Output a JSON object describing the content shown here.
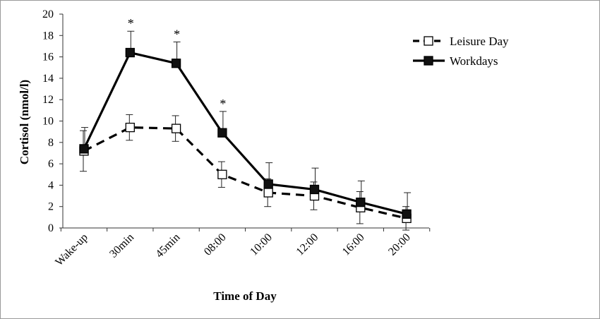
{
  "chart_data": {
    "type": "line",
    "title": "",
    "xlabel": "Time of Day",
    "ylabel": "Cortisol (nmol/l)",
    "ylim": [
      0,
      20
    ],
    "yticks": [
      "0",
      "2",
      "4",
      "6",
      "8",
      "10",
      "12",
      "14",
      "16",
      "18",
      "20"
    ],
    "categories": [
      "Wake-up",
      "30min",
      "45min",
      "08:00",
      "10:00",
      "12:00",
      "16:00",
      "20:00"
    ],
    "series": [
      {
        "name": "Leisure Day",
        "style": "dashed",
        "marker": "open-square",
        "values": [
          7.2,
          9.4,
          9.3,
          5.0,
          3.3,
          3.0,
          1.9,
          0.9
        ],
        "errors": [
          1.9,
          1.2,
          1.2,
          1.2,
          1.3,
          1.3,
          1.5,
          1.1
        ]
      },
      {
        "name": "Workdays",
        "style": "solid",
        "marker": "filled-square",
        "values": [
          7.4,
          16.4,
          15.4,
          8.9,
          4.1,
          3.6,
          2.4,
          1.3
        ],
        "errors": [
          2.0,
          2.0,
          2.0,
          2.0,
          2.0,
          2.0,
          2.0,
          2.0
        ]
      }
    ],
    "significance_marker": "*",
    "significant_categories": [
      "30min",
      "45min",
      "08:00"
    ],
    "legend_position": "top-right"
  }
}
